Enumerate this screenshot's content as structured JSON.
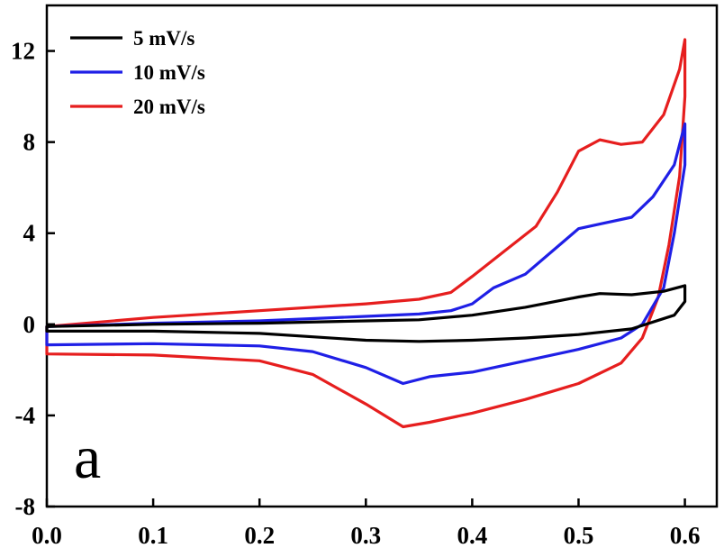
{
  "chart_data": {
    "type": "line",
    "title": "",
    "xlabel": "",
    "ylabel": "",
    "panel_label": "a",
    "xlim": [
      0.0,
      0.63
    ],
    "ylim": [
      -8,
      14
    ],
    "xticks": [
      0.0,
      0.1,
      0.2,
      0.3,
      0.4,
      0.5,
      0.6
    ],
    "xtick_labels": [
      "0.0",
      "0.1",
      "0.2",
      "0.3",
      "0.4",
      "0.5",
      "0.6"
    ],
    "yticks": [
      -8,
      -4,
      0,
      4,
      8,
      12
    ],
    "ytick_labels": [
      "-8",
      "-4",
      "0",
      "4",
      "8",
      "12"
    ],
    "grid": false,
    "legend_position": "top-left",
    "series": [
      {
        "name": "5 mV/s",
        "color": "#000000",
        "points": [
          [
            0.0,
            -0.1
          ],
          [
            0.1,
            0.0
          ],
          [
            0.2,
            0.05
          ],
          [
            0.3,
            0.15
          ],
          [
            0.35,
            0.2
          ],
          [
            0.4,
            0.4
          ],
          [
            0.45,
            0.75
          ],
          [
            0.5,
            1.2
          ],
          [
            0.52,
            1.35
          ],
          [
            0.55,
            1.3
          ],
          [
            0.58,
            1.45
          ],
          [
            0.6,
            1.7
          ],
          [
            0.6,
            1.0
          ],
          [
            0.59,
            0.4
          ],
          [
            0.55,
            -0.2
          ],
          [
            0.5,
            -0.45
          ],
          [
            0.45,
            -0.6
          ],
          [
            0.4,
            -0.7
          ],
          [
            0.35,
            -0.75
          ],
          [
            0.3,
            -0.7
          ],
          [
            0.25,
            -0.55
          ],
          [
            0.2,
            -0.4
          ],
          [
            0.1,
            -0.3
          ],
          [
            0.0,
            -0.3
          ],
          [
            0.0,
            -0.1
          ]
        ]
      },
      {
        "name": "10 mV/s",
        "color": "#1f1fe6",
        "points": [
          [
            0.0,
            -0.1
          ],
          [
            0.1,
            0.05
          ],
          [
            0.2,
            0.15
          ],
          [
            0.3,
            0.35
          ],
          [
            0.35,
            0.45
          ],
          [
            0.38,
            0.6
          ],
          [
            0.4,
            0.9
          ],
          [
            0.42,
            1.6
          ],
          [
            0.45,
            2.2
          ],
          [
            0.48,
            3.4
          ],
          [
            0.5,
            4.2
          ],
          [
            0.52,
            4.4
          ],
          [
            0.55,
            4.7
          ],
          [
            0.57,
            5.6
          ],
          [
            0.59,
            7.0
          ],
          [
            0.6,
            8.8
          ],
          [
            0.6,
            7.0
          ],
          [
            0.59,
            4.0
          ],
          [
            0.58,
            1.6
          ],
          [
            0.56,
            0.0
          ],
          [
            0.54,
            -0.6
          ],
          [
            0.5,
            -1.1
          ],
          [
            0.45,
            -1.6
          ],
          [
            0.4,
            -2.1
          ],
          [
            0.36,
            -2.3
          ],
          [
            0.335,
            -2.6
          ],
          [
            0.3,
            -1.9
          ],
          [
            0.25,
            -1.2
          ],
          [
            0.2,
            -0.95
          ],
          [
            0.1,
            -0.85
          ],
          [
            0.0,
            -0.9
          ],
          [
            0.0,
            -0.1
          ]
        ]
      },
      {
        "name": "20 mV/s",
        "color": "#e61e1e",
        "points": [
          [
            0.0,
            -0.1
          ],
          [
            0.1,
            0.3
          ],
          [
            0.2,
            0.6
          ],
          [
            0.3,
            0.9
          ],
          [
            0.35,
            1.1
          ],
          [
            0.38,
            1.4
          ],
          [
            0.4,
            2.1
          ],
          [
            0.43,
            3.2
          ],
          [
            0.46,
            4.3
          ],
          [
            0.48,
            5.8
          ],
          [
            0.5,
            7.6
          ],
          [
            0.52,
            8.1
          ],
          [
            0.54,
            7.9
          ],
          [
            0.56,
            8.0
          ],
          [
            0.58,
            9.2
          ],
          [
            0.595,
            11.2
          ],
          [
            0.6,
            12.5
          ],
          [
            0.6,
            10.0
          ],
          [
            0.595,
            6.5
          ],
          [
            0.585,
            3.5
          ],
          [
            0.575,
            1.2
          ],
          [
            0.56,
            -0.6
          ],
          [
            0.54,
            -1.7
          ],
          [
            0.5,
            -2.6
          ],
          [
            0.45,
            -3.3
          ],
          [
            0.4,
            -3.9
          ],
          [
            0.36,
            -4.3
          ],
          [
            0.335,
            -4.5
          ],
          [
            0.3,
            -3.5
          ],
          [
            0.25,
            -2.2
          ],
          [
            0.2,
            -1.6
          ],
          [
            0.1,
            -1.35
          ],
          [
            0.0,
            -1.3
          ],
          [
            0.0,
            -0.1
          ]
        ]
      }
    ]
  }
}
